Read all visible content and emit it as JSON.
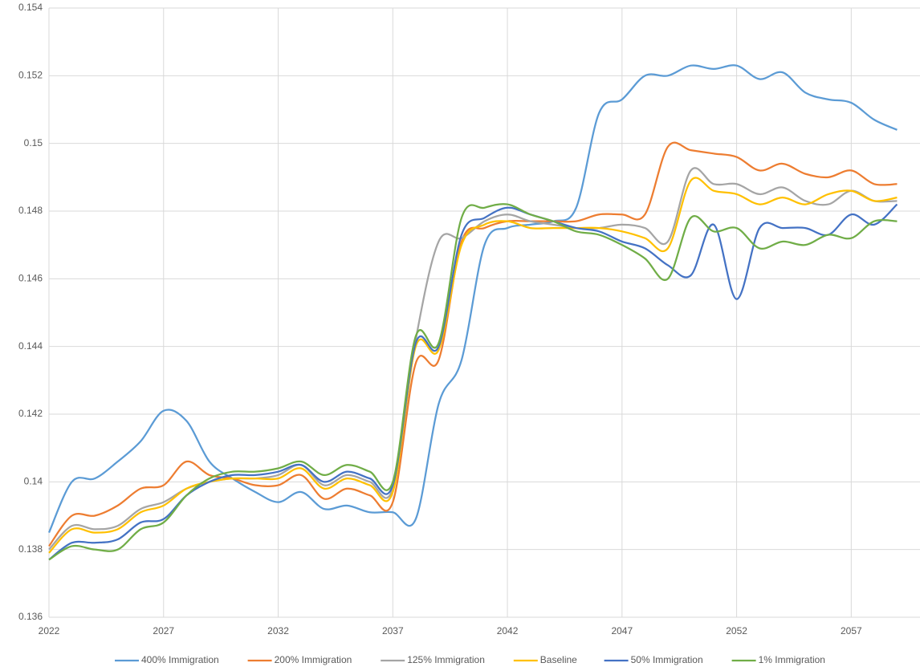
{
  "chart_data": {
    "type": "line",
    "x": [
      2022,
      2023,
      2024,
      2025,
      2026,
      2027,
      2028,
      2029,
      2030,
      2031,
      2032,
      2033,
      2034,
      2035,
      2036,
      2037,
      2038,
      2039,
      2040,
      2041,
      2042,
      2043,
      2044,
      2045,
      2046,
      2047,
      2048,
      2049,
      2050,
      2051,
      2052,
      2053,
      2054,
      2055,
      2056,
      2057,
      2058,
      2059
    ],
    "xlim": [
      2022,
      2060
    ],
    "xticks": [
      2022,
      2027,
      2032,
      2037,
      2042,
      2047,
      2052,
      2057
    ],
    "ylim": [
      0.136,
      0.154
    ],
    "yticks": [
      0.136,
      0.138,
      0.14,
      0.142,
      0.144,
      0.146,
      0.148,
      0.15,
      0.152,
      0.154
    ],
    "grid": true,
    "legend": "bottom",
    "series": [
      {
        "name": "400% Immigration",
        "color": "#5b9bd5",
        "values": [
          0.1385,
          0.14,
          0.1401,
          0.1406,
          0.1412,
          0.1421,
          0.1418,
          0.1406,
          0.1401,
          0.1397,
          0.1394,
          0.1397,
          0.1392,
          0.1393,
          0.1391,
          0.1391,
          0.1389,
          0.1423,
          0.1436,
          0.147,
          0.1475,
          0.1476,
          0.1477,
          0.1481,
          0.1509,
          0.1513,
          0.152,
          0.152,
          0.1523,
          0.1522,
          0.1523,
          0.1519,
          0.1521,
          0.1515,
          0.1513,
          0.1512,
          0.1507,
          0.1504
        ]
      },
      {
        "name": "200% Immigration",
        "color": "#ed7d31",
        "values": [
          0.1381,
          0.139,
          0.139,
          0.1393,
          0.1398,
          0.1399,
          0.1406,
          0.1402,
          0.1401,
          0.1399,
          0.1399,
          0.1402,
          0.1395,
          0.1398,
          0.1396,
          0.1394,
          0.1435,
          0.1436,
          0.1471,
          0.1475,
          0.1477,
          0.1477,
          0.1477,
          0.1477,
          0.1479,
          0.1479,
          0.1479,
          0.1499,
          0.1498,
          0.1497,
          0.1496,
          0.1492,
          0.1494,
          0.1491,
          0.149,
          0.1492,
          0.1488,
          0.1488
        ]
      },
      {
        "name": "125% Immigration",
        "color": "#a5a5a5",
        "values": [
          0.138,
          0.1387,
          0.1386,
          0.1387,
          0.1392,
          0.1394,
          0.1398,
          0.14,
          0.1401,
          0.1401,
          0.1402,
          0.1405,
          0.1399,
          0.1402,
          0.14,
          0.1398,
          0.1442,
          0.1471,
          0.1472,
          0.1477,
          0.1479,
          0.1477,
          0.1476,
          0.1475,
          0.1475,
          0.1476,
          0.1475,
          0.1471,
          0.1492,
          0.1488,
          0.1488,
          0.1485,
          0.1487,
          0.1483,
          0.1482,
          0.1486,
          0.1483,
          0.1483
        ]
      },
      {
        "name": "Baseline",
        "color": "#ffc000",
        "values": [
          0.1379,
          0.1386,
          0.1385,
          0.1386,
          0.1391,
          0.1393,
          0.1398,
          0.14,
          0.1401,
          0.1401,
          0.1401,
          0.1404,
          0.1398,
          0.1401,
          0.1399,
          0.1397,
          0.144,
          0.1439,
          0.147,
          0.1476,
          0.1477,
          0.1475,
          0.1475,
          0.1475,
          0.1475,
          0.1474,
          0.1472,
          0.1469,
          0.1489,
          0.1486,
          0.1485,
          0.1482,
          0.1484,
          0.1482,
          0.1485,
          0.1486,
          0.1483,
          0.1484
        ]
      },
      {
        "name": "50% Immigration",
        "color": "#4472c4",
        "values": [
          0.1377,
          0.1382,
          0.1382,
          0.1383,
          0.1388,
          0.1389,
          0.1396,
          0.14,
          0.1402,
          0.1402,
          0.1403,
          0.1405,
          0.14,
          0.1403,
          0.1401,
          0.1399,
          0.1441,
          0.144,
          0.1473,
          0.1478,
          0.1481,
          0.1479,
          0.1477,
          0.1475,
          0.1474,
          0.1471,
          0.1469,
          0.1464,
          0.1461,
          0.1476,
          0.1454,
          0.1475,
          0.1475,
          0.1475,
          0.1473,
          0.1479,
          0.1476,
          0.1482
        ]
      },
      {
        "name": "1% Immigration",
        "color": "#70ad47",
        "values": [
          0.1377,
          0.1381,
          0.138,
          0.138,
          0.1386,
          0.1388,
          0.1396,
          0.1401,
          0.1403,
          0.1403,
          0.1404,
          0.1406,
          0.1402,
          0.1405,
          0.1403,
          0.14,
          0.1443,
          0.1441,
          0.1478,
          0.1481,
          0.1482,
          0.1479,
          0.1477,
          0.1474,
          0.1473,
          0.147,
          0.1466,
          0.146,
          0.1478,
          0.1474,
          0.1475,
          0.1469,
          0.1471,
          0.147,
          0.1473,
          0.1472,
          0.1477,
          0.1477
        ]
      }
    ]
  }
}
